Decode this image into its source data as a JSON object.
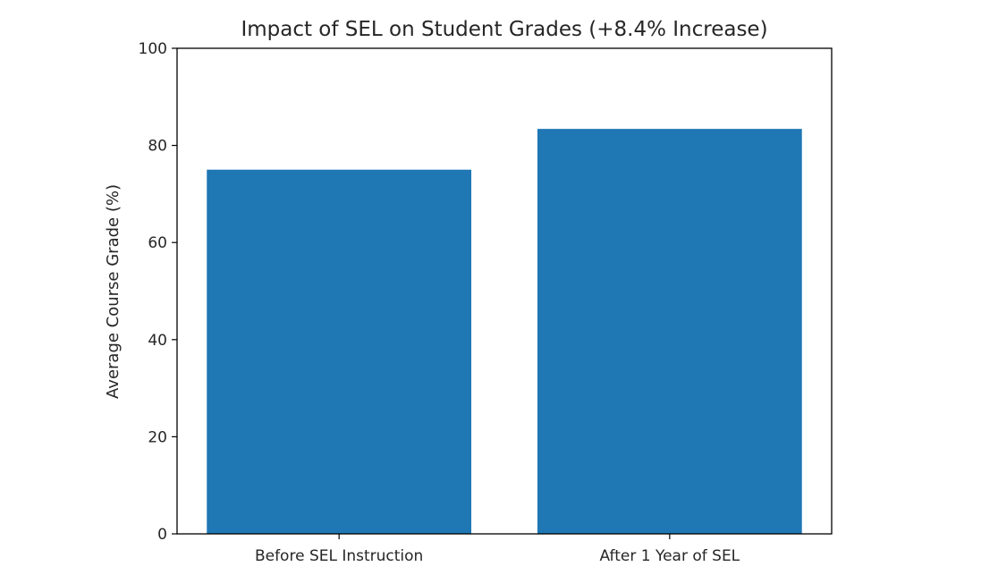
{
  "chart_data": {
    "type": "bar",
    "title": "Impact of SEL on Student Grades (+8.4% Increase)",
    "xlabel": "",
    "ylabel": "Average Course Grade (%)",
    "categories": [
      "Before SEL Instruction",
      "After 1 Year of SEL"
    ],
    "values": [
      75.0,
      83.4
    ],
    "ylim": [
      0,
      100
    ],
    "yticks": [
      0,
      20,
      40,
      60,
      80,
      100
    ],
    "grid": false,
    "colors": {
      "bar": "#1f77b4",
      "axis": "#000000",
      "text": "#262626"
    }
  }
}
